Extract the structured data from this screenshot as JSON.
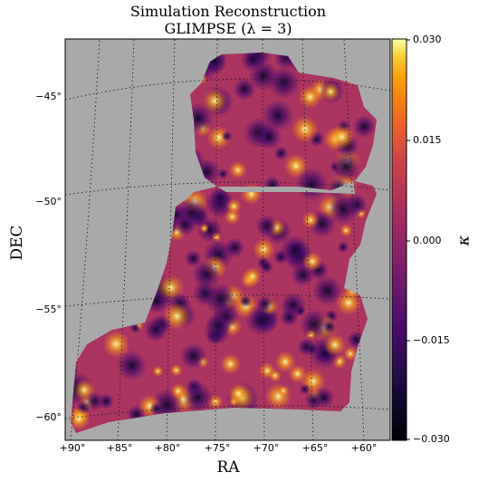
{
  "chart_data": {
    "type": "heatmap",
    "title": "Simulation Reconstruction",
    "subtitle": "GLIMPSE  (λ = 3)",
    "xlabel": "RA",
    "ylabel": "DEC",
    "x_ticks": [
      "+90°",
      "+85°",
      "+80°",
      "+75°",
      "+70°",
      "+65°",
      "+60°"
    ],
    "y_ticks": [
      "−45°",
      "−50°",
      "−55°",
      "−60°"
    ],
    "colorbar": {
      "label": "κ",
      "ticks": [
        "0.030",
        "0.015",
        "0.000",
        "−0.015",
        "−0.030"
      ],
      "range": [
        -0.03,
        0.03
      ],
      "colormap": "inferno"
    },
    "grid": true,
    "background_color": "#a9a9a9"
  }
}
